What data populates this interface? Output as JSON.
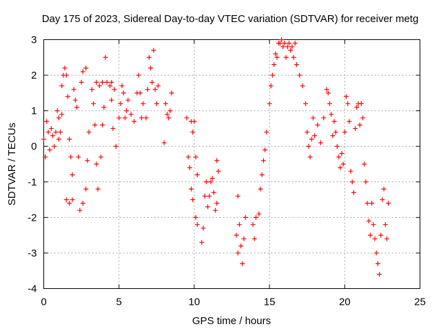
{
  "chart_data": {
    "type": "scatter",
    "title": "Day 175 of 2023, Sidereal Day-to-day VTEC variation (SDTVAR) for receiver metg",
    "xlabel": "GPS time / hours",
    "ylabel": "SDTVAR / TECUs",
    "xlim": [
      0,
      25
    ],
    "ylim": [
      -4,
      3
    ],
    "xticks": [
      0,
      5,
      10,
      15,
      20,
      25
    ],
    "yticks": [
      -4,
      -3,
      -2,
      -1,
      0,
      1,
      2,
      3
    ],
    "xtick_labels": [
      "0",
      "5",
      "10",
      "15",
      "20",
      "25"
    ],
    "ytick_labels": [
      "-4",
      "-3",
      "-2",
      "-1",
      "0",
      "1",
      "2",
      "3"
    ],
    "grid": true,
    "marker": "+",
    "marker_color": "#ff0000",
    "series": [
      {
        "name": "metg",
        "points": [
          [
            0.0,
            0.2
          ],
          [
            0.1,
            -0.3
          ],
          [
            0.2,
            0.7
          ],
          [
            0.3,
            0.4
          ],
          [
            0.4,
            -0.1
          ],
          [
            0.5,
            0.5
          ],
          [
            0.6,
            0.3
          ],
          [
            0.7,
            0.0
          ],
          [
            0.8,
            0.4
          ],
          [
            0.9,
            1.0
          ],
          [
            1.0,
            0.8
          ],
          [
            1.1,
            0.4
          ],
          [
            1.2,
            1.7
          ],
          [
            1.3,
            2.0
          ],
          [
            1.4,
            2.2
          ],
          [
            1.5,
            2.0
          ],
          [
            1.6,
            1.4
          ],
          [
            1.7,
            0.2
          ],
          [
            1.8,
            -0.3
          ],
          [
            1.9,
            -0.8
          ],
          [
            1.5,
            -1.5
          ],
          [
            1.7,
            -1.6
          ],
          [
            1.9,
            -1.5
          ],
          [
            1.0,
            0.2
          ],
          [
            1.2,
            0.9
          ],
          [
            2.0,
            1.6
          ],
          [
            2.1,
            1.3
          ],
          [
            2.2,
            1.1
          ],
          [
            2.3,
            -0.3
          ],
          [
            2.4,
            -1.8
          ],
          [
            2.6,
            -1.6
          ],
          [
            2.8,
            -1.2
          ],
          [
            2.9,
            -0.4
          ],
          [
            3.0,
            0.4
          ],
          [
            2.5,
            1.8
          ],
          [
            2.6,
            2.1
          ],
          [
            2.8,
            2.2
          ],
          [
            3.2,
            1.6
          ],
          [
            3.3,
            1.2
          ],
          [
            3.4,
            0.6
          ],
          [
            3.5,
            -0.5
          ],
          [
            3.6,
            -1.2
          ],
          [
            3.8,
            -0.3
          ],
          [
            3.9,
            0.6
          ],
          [
            4.0,
            1.1
          ],
          [
            3.5,
            1.8
          ],
          [
            3.7,
            1.7
          ],
          [
            3.9,
            1.8
          ],
          [
            4.1,
            2.5
          ],
          [
            4.2,
            1.8
          ],
          [
            4.4,
            1.7
          ],
          [
            4.5,
            1.3
          ],
          [
            4.6,
            0.5
          ],
          [
            4.8,
            0.0
          ],
          [
            4.5,
            1.8
          ],
          [
            4.7,
            1.6
          ],
          [
            5.0,
            0.8
          ],
          [
            5.1,
            1.2
          ],
          [
            5.2,
            1.7
          ],
          [
            5.3,
            1.5
          ],
          [
            5.4,
            0.8
          ],
          [
            5.5,
            1.0
          ],
          [
            5.6,
            1.3
          ],
          [
            5.8,
            0.9
          ],
          [
            6.0,
            0.7
          ],
          [
            6.2,
            1.5
          ],
          [
            6.3,
            2.0
          ],
          [
            6.4,
            1.5
          ],
          [
            6.5,
            0.8
          ],
          [
            6.6,
            1.2
          ],
          [
            6.8,
            0.8
          ],
          [
            6.9,
            1.6
          ],
          [
            7.0,
            2.5
          ],
          [
            7.1,
            2.2
          ],
          [
            7.2,
            1.8
          ],
          [
            7.3,
            2.7
          ],
          [
            7.4,
            1.6
          ],
          [
            7.5,
            1.2
          ],
          [
            7.6,
            1.7
          ],
          [
            8.0,
            0.1
          ],
          [
            8.1,
            1.2
          ],
          [
            8.2,
            0.9
          ],
          [
            8.3,
            0.8
          ],
          [
            8.4,
            1.0
          ],
          [
            8.5,
            1.5
          ],
          [
            9.5,
            0.8
          ],
          [
            9.6,
            -0.3
          ],
          [
            9.7,
            -0.6
          ],
          [
            9.8,
            0.7
          ],
          [
            9.9,
            0.4
          ],
          [
            10.0,
            0.7
          ],
          [
            10.1,
            -0.3
          ],
          [
            10.2,
            -0.8
          ],
          [
            9.8,
            -1.2
          ],
          [
            9.9,
            -1.5
          ],
          [
            10.1,
            -2.0
          ],
          [
            10.2,
            -2.2
          ],
          [
            10.5,
            -2.7
          ],
          [
            10.6,
            -2.3
          ],
          [
            10.7,
            -1.4
          ],
          [
            10.8,
            -1.0
          ],
          [
            10.9,
            -1.7
          ],
          [
            11.0,
            -1.4
          ],
          [
            11.1,
            -1.0
          ],
          [
            11.2,
            -0.9
          ],
          [
            11.3,
            -1.3
          ],
          [
            11.4,
            -1.8
          ],
          [
            11.5,
            -1.6
          ],
          [
            11.5,
            -0.4
          ],
          [
            11.6,
            -0.7
          ],
          [
            12.9,
            -1.4
          ],
          [
            13.0,
            -2.2
          ],
          [
            13.1,
            -2.8
          ],
          [
            13.2,
            -3.3
          ],
          [
            13.3,
            -2.6
          ],
          [
            13.4,
            -2.0
          ],
          [
            12.8,
            -2.5
          ],
          [
            12.9,
            -3.0
          ],
          [
            13.9,
            -2.2
          ],
          [
            14.0,
            -2.6
          ],
          [
            14.1,
            -2.0
          ],
          [
            14.3,
            -1.9
          ],
          [
            14.4,
            -1.2
          ],
          [
            14.5,
            -0.8
          ],
          [
            14.6,
            -0.4
          ],
          [
            14.7,
            -0.1
          ],
          [
            14.8,
            0.4
          ],
          [
            15.0,
            1.2
          ],
          [
            15.1,
            1.7
          ],
          [
            15.2,
            2.0
          ],
          [
            15.3,
            2.3
          ],
          [
            15.4,
            2.6
          ],
          [
            15.5,
            2.5
          ],
          [
            15.6,
            2.9
          ],
          [
            15.7,
            2.9
          ],
          [
            15.8,
            3.0
          ],
          [
            15.9,
            2.8
          ],
          [
            16.0,
            2.9
          ],
          [
            16.1,
            2.5
          ],
          [
            16.2,
            2.8
          ],
          [
            16.3,
            2.9
          ],
          [
            16.4,
            2.7
          ],
          [
            16.5,
            2.8
          ],
          [
            16.6,
            2.5
          ],
          [
            16.7,
            2.9
          ],
          [
            16.8,
            2.3
          ],
          [
            17.0,
            2.0
          ],
          [
            17.2,
            1.7
          ],
          [
            17.4,
            1.2
          ],
          [
            17.5,
            0.4
          ],
          [
            17.6,
            0.0
          ],
          [
            17.7,
            -0.3
          ],
          [
            17.8,
            0.2
          ],
          [
            17.9,
            0.8
          ],
          [
            18.0,
            0.3
          ],
          [
            18.2,
            0.6
          ],
          [
            18.4,
            0.1
          ],
          [
            18.6,
            0.8
          ],
          [
            18.8,
            1.6
          ],
          [
            18.9,
            1.5
          ],
          [
            19.0,
            1.2
          ],
          [
            19.1,
            0.9
          ],
          [
            19.2,
            0.3
          ],
          [
            19.3,
            0.7
          ],
          [
            19.4,
            0.4
          ],
          [
            19.5,
            0.0
          ],
          [
            19.6,
            -0.3
          ],
          [
            19.7,
            -0.6
          ],
          [
            19.8,
            -0.2
          ],
          [
            19.9,
            -0.5
          ],
          [
            20.0,
            0.4
          ],
          [
            20.1,
            1.4
          ],
          [
            20.2,
            1.2
          ],
          [
            20.3,
            0.7
          ],
          [
            20.4,
            -0.7
          ],
          [
            20.5,
            -1.0
          ],
          [
            20.6,
            -1.3
          ],
          [
            20.7,
            0.5
          ],
          [
            20.8,
            1.1
          ],
          [
            20.9,
            1.2
          ],
          [
            21.0,
            0.6
          ],
          [
            21.1,
            1.2
          ],
          [
            21.2,
            0.8
          ],
          [
            21.3,
            -0.5
          ],
          [
            21.4,
            -1.0
          ],
          [
            21.5,
            -1.6
          ],
          [
            21.6,
            -2.1
          ],
          [
            21.7,
            -2.5
          ],
          [
            21.8,
            -1.6
          ],
          [
            21.9,
            -2.2
          ],
          [
            22.0,
            -2.6
          ],
          [
            22.1,
            -3.0
          ],
          [
            22.2,
            -3.3
          ],
          [
            22.3,
            -3.6
          ],
          [
            22.4,
            -2.5
          ],
          [
            22.5,
            -1.5
          ],
          [
            22.6,
            -1.2
          ],
          [
            22.7,
            -2.2
          ],
          [
            22.8,
            -2.6
          ],
          [
            22.9,
            -1.6
          ]
        ]
      }
    ]
  }
}
